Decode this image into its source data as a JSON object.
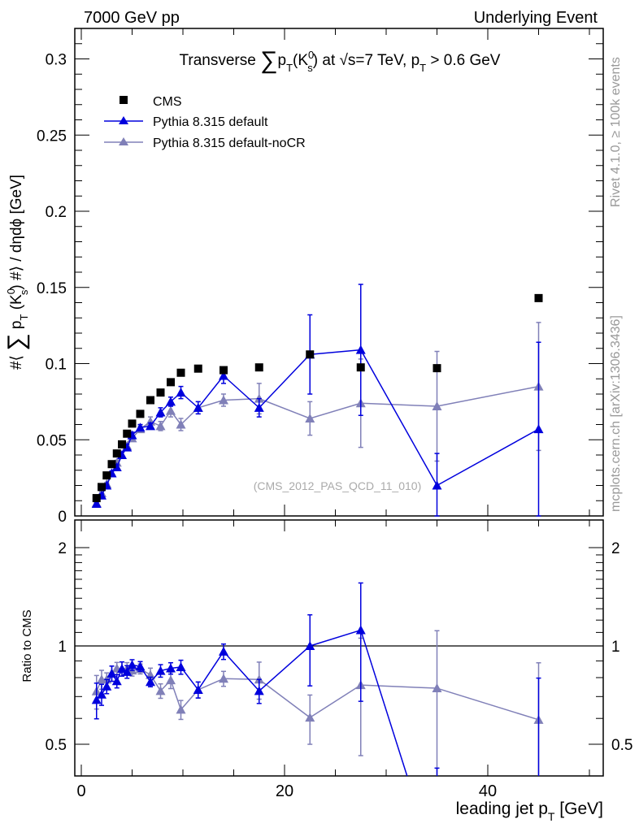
{
  "header": {
    "left": "7000 GeV pp",
    "right": "Underlying Event"
  },
  "side_labels": {
    "rivet": "Rivet 4.1.0, ≥ 100k events",
    "mcplots": "mcplots.cern.ch [arXiv:1306.3436]"
  },
  "analysis_tag": "(CMS_2012_PAS_QCD_11_010)",
  "colors": {
    "cms": "#000000",
    "default": "#0000dd",
    "noCR": "#8080b8"
  },
  "chart_data": [
    {
      "type": "scatter",
      "title": "Transverse ∑ pT(K0s) at √s=7 TeV, pT > 0.6 GeV",
      "title_parts": {
        "a": "Transverse ",
        "sum": "∑",
        "p": "p",
        "T": "T",
        "k": "(K",
        "s": "s",
        "zero": "0",
        "rest": ") at √s=7 TeV, p",
        "T2": "T",
        "tail": " > 0.6 GeV"
      },
      "ylabel": "#⟨ ∑ pT(K0s) #⟩ / dηdϕ [GeV]",
      "ylabel_parts": {
        "a": "#⟨ ",
        "sum": "∑",
        "p": " p",
        "T": "T",
        "k": " (K",
        "s": "s",
        "zero": "0",
        "rest": ") #⟩ / dηdϕ [GeV]"
      },
      "xlim": [
        -1.5,
        51
      ],
      "ylim": [
        0,
        0.32
      ],
      "yticks": [
        0,
        0.05,
        0.1,
        0.15,
        0.2,
        0.25,
        0.3
      ],
      "ytick_labels": [
        "0",
        "0.05",
        "0.1",
        "0.15",
        "0.2",
        "0.25",
        "0.3"
      ],
      "legend": {
        "placement": "top-left",
        "entries": [
          "CMS",
          "Pythia 8.315 default",
          "Pythia 8.315 default-noCR"
        ]
      },
      "x": [
        1.5,
        2.0,
        2.5,
        3.0,
        3.5,
        4.0,
        4.5,
        5.0,
        5.8,
        6.8,
        7.8,
        8.8,
        9.8,
        11.5,
        14.0,
        17.5,
        22.5,
        27.5,
        35.0,
        45.0
      ],
      "series": [
        {
          "name": "CMS",
          "marker": "square",
          "values": [
            0.0117,
            0.019,
            0.0266,
            0.034,
            0.041,
            0.047,
            0.054,
            0.0606,
            0.067,
            0.076,
            0.081,
            0.0878,
            0.094,
            0.0967,
            0.0957,
            0.0975,
            0.106,
            0.0975,
            0.097,
            0.143
          ]
        },
        {
          "name": "Pythia 8.315 default",
          "marker": "triangle",
          "values": [
            0.008,
            0.0135,
            0.02,
            0.028,
            0.032,
            0.04,
            0.045,
            0.053,
            0.058,
            0.059,
            0.068,
            0.075,
            0.081,
            0.071,
            0.092,
            0.071,
            0.106,
            0.109,
            0.02,
            0.057
          ],
          "errors": [
            0.001,
            0.001,
            0.001,
            0.0015,
            0.0015,
            0.002,
            0.002,
            0.002,
            0.002,
            0.002,
            0.003,
            0.003,
            0.004,
            0.004,
            0.005,
            0.006,
            0.026,
            0.043,
            0.021,
            0.057
          ]
        },
        {
          "name": "Pythia 8.315 default-noCR",
          "marker": "triangle",
          "values": [
            0.0085,
            0.015,
            0.021,
            0.028,
            0.035,
            0.04,
            0.046,
            0.051,
            0.057,
            0.062,
            0.059,
            0.069,
            0.06,
            0.071,
            0.076,
            0.077,
            0.064,
            0.074,
            0.072,
            0.085
          ],
          "errors": [
            0.001,
            0.001,
            0.001,
            0.0015,
            0.0015,
            0.002,
            0.002,
            0.002,
            0.002,
            0.003,
            0.003,
            0.004,
            0.004,
            0.004,
            0.004,
            0.01,
            0.011,
            0.029,
            0.036,
            0.042
          ]
        }
      ]
    },
    {
      "type": "line",
      "ylabel": "Ratio to CMS",
      "xlabel": "leading jet pT [GeV]",
      "xlabel_parts": {
        "a": "leading jet p",
        "T": "T",
        "b": " [GeV]"
      },
      "yscale": "log",
      "ylim": [
        0.4,
        2.43
      ],
      "yticks": [
        0.5,
        1,
        2
      ],
      "ytick_labels": [
        "0.5",
        "1",
        "2"
      ],
      "xticks": [
        0,
        20,
        40
      ],
      "xtick_labels": [
        "0",
        "20",
        "40"
      ],
      "reference_line": 1,
      "note": "ratio = Pythia / CMS"
    }
  ]
}
